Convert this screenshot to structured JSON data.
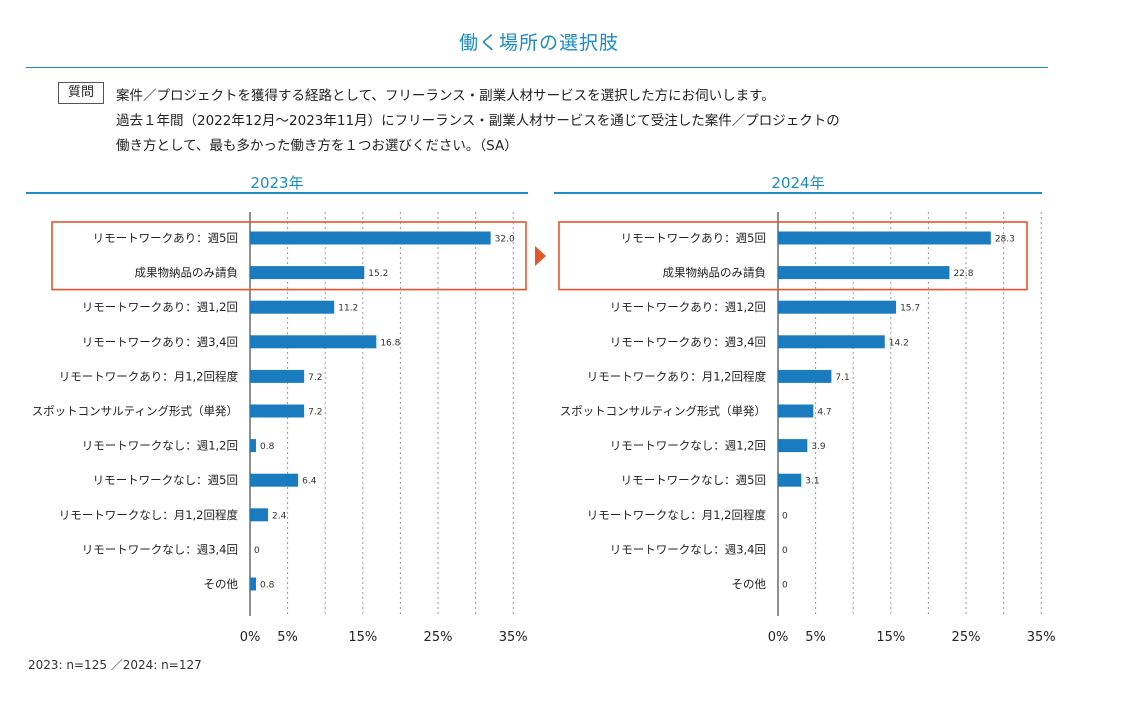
{
  "page": {
    "title": "働く場所の選択肢",
    "question_badge": "質問",
    "question_lines": [
      "案件／プロジェクトを獲得する経路として、フリーランス・副業人材サービスを選択した方にお伺いします。",
      "過去１年間（2022年12月〜2023年11月）にフリーランス・副業人材サービスを通じて受注した案件／プロジェクトの",
      "働き方として、最も多かった働き方を１つお選びください。（SA）"
    ],
    "footnote": "2023: n=125 ／2024: n=127"
  },
  "colors": {
    "accent": "#1a8cc6",
    "bar": "#1a7cbf",
    "highlight": "#e8542e"
  },
  "chart_data": [
    {
      "type": "bar",
      "orientation": "horizontal",
      "title": "2023年",
      "categories": [
        "リモートワークあり：週5回",
        "成果物納品のみ請負",
        "リモートワークあり：週1,2回",
        "リモートワークあり：週3,4回",
        "リモートワークあり：月1,2回程度",
        "スポットコンサルティング形式（単発）",
        "リモートワークなし：週1,2回",
        "リモートワークなし：週5回",
        "リモートワークなし：月1,2回程度",
        "リモートワークなし：週3,4回",
        "その他"
      ],
      "values": [
        32.0,
        15.2,
        11.2,
        16.8,
        7.2,
        7.2,
        0.8,
        6.4,
        2.4,
        0,
        0.8
      ],
      "value_labels": [
        "32.0",
        "15.2",
        "11.2",
        "16.8",
        "7.2",
        "7.2",
        "0.8",
        "6.4",
        "2.4",
        "0",
        "0.8"
      ],
      "xlim": [
        0,
        35
      ],
      "xticks": [
        "0%",
        "5%",
        "15%",
        "25%",
        "35%"
      ],
      "xtick_values": [
        0,
        5,
        15,
        25,
        35
      ],
      "gridlines": [
        5,
        10,
        15,
        20,
        25,
        30,
        35
      ],
      "highlighted_categories": [
        "リモートワークあり：週5回",
        "成果物納品のみ請負"
      ]
    },
    {
      "type": "bar",
      "orientation": "horizontal",
      "title": "2024年",
      "categories": [
        "リモートワークあり：週5回",
        "成果物納品のみ請負",
        "リモートワークあり：週1,2回",
        "リモートワークあり：週3,4回",
        "リモートワークあり：月1,2回程度",
        "スポットコンサルティング形式（単発）",
        "リモートワークなし：週1,2回",
        "リモートワークなし：週5回",
        "リモートワークなし：月1,2回程度",
        "リモートワークなし：週3,4回",
        "その他"
      ],
      "values": [
        28.3,
        22.8,
        15.7,
        14.2,
        7.1,
        4.7,
        3.9,
        3.1,
        0,
        0,
        0
      ],
      "value_labels": [
        "28.3",
        "22.8",
        "15.7",
        "14.2",
        "7.1",
        "4.7",
        "3.9",
        "3.1",
        "0",
        "0",
        "0"
      ],
      "xlim": [
        0,
        35
      ],
      "xticks": [
        "0%",
        "5%",
        "15%",
        "25%",
        "35%"
      ],
      "xtick_values": [
        0,
        5,
        15,
        25,
        35
      ],
      "gridlines": [
        5,
        10,
        15,
        20,
        25,
        30,
        35
      ],
      "highlighted_categories": [
        "リモートワークあり：週5回",
        "成果物納品のみ請負"
      ]
    }
  ]
}
